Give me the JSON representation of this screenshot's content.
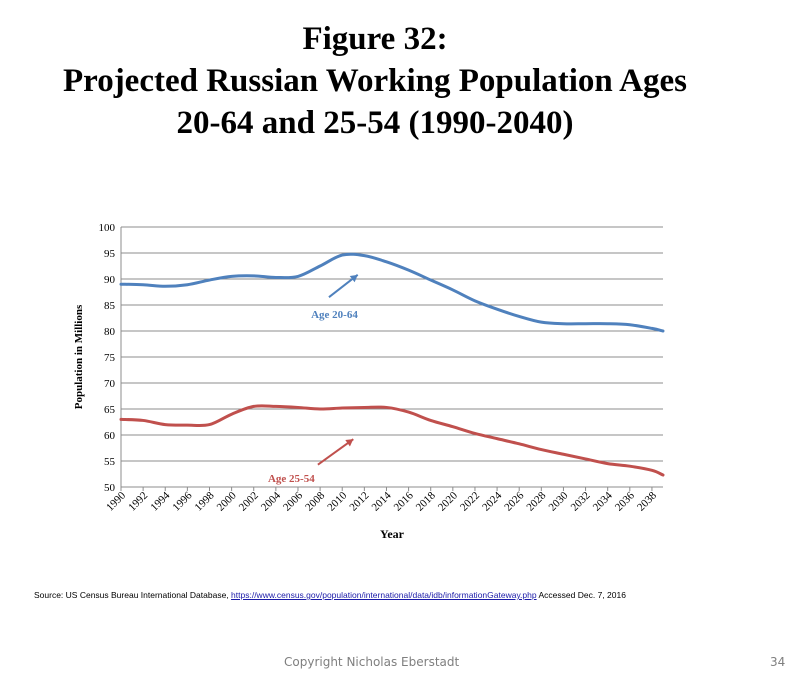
{
  "title": {
    "line1": "Figure 32:",
    "line2": "Projected Russian Working Population Ages",
    "line3": "20-64 and 25-54 (1990-2040)"
  },
  "chart_data": {
    "type": "line",
    "xlabel": "Year",
    "ylabel": "Population in Millions",
    "ylim": [
      50,
      100
    ],
    "yticks": [
      50,
      55,
      60,
      65,
      70,
      75,
      80,
      85,
      90,
      95,
      100
    ],
    "xlim": [
      1990,
      2039
    ],
    "xticks": [
      1990,
      1992,
      1994,
      1996,
      1998,
      2000,
      2002,
      2004,
      2006,
      2008,
      2010,
      2012,
      2014,
      2016,
      2018,
      2020,
      2022,
      2024,
      2026,
      2028,
      2030,
      2032,
      2034,
      2036,
      2038
    ],
    "grid": "horizontal",
    "series": [
      {
        "name": "Age 20-64",
        "color": "#4f81bd",
        "x": [
          1990,
          1992,
          1994,
          1996,
          1998,
          2000,
          2002,
          2004,
          2006,
          2008,
          2010,
          2012,
          2014,
          2016,
          2018,
          2020,
          2022,
          2024,
          2026,
          2028,
          2030,
          2032,
          2034,
          2036,
          2038,
          2039
        ],
        "y": [
          89,
          88.9,
          88.6,
          88.9,
          89.8,
          90.5,
          90.6,
          90.3,
          90.5,
          92.5,
          94.6,
          94.5,
          93.3,
          91.7,
          89.8,
          87.9,
          85.8,
          84.2,
          82.8,
          81.7,
          81.4,
          81.4,
          81.4,
          81.2,
          80.5,
          80
        ],
        "label": "Age 20-64"
      },
      {
        "name": "Age 25-54",
        "color": "#c0504d",
        "x": [
          1990,
          1992,
          1994,
          1996,
          1998,
          2000,
          2002,
          2004,
          2006,
          2008,
          2010,
          2012,
          2014,
          2016,
          2018,
          2020,
          2022,
          2024,
          2026,
          2028,
          2030,
          2032,
          2034,
          2036,
          2038,
          2039
        ],
        "y": [
          63,
          62.8,
          62,
          61.9,
          62,
          64,
          65.5,
          65.5,
          65.3,
          65,
          65.2,
          65.3,
          65.3,
          64.4,
          62.8,
          61.6,
          60.3,
          59.3,
          58.3,
          57.2,
          56.3,
          55.4,
          54.5,
          54,
          53.2,
          52.3
        ],
        "label": "Age 25-54"
      }
    ]
  },
  "source": {
    "prefix": "Source: US Census Bureau International Database,",
    "link": "https://www.census.gov/population/international/data/idb/informationGateway.php",
    "suffix": "Accessed Dec. 7, 2016"
  },
  "footer": {
    "copyright": "Copyright Nicholas Eberstadt",
    "page": "34"
  }
}
